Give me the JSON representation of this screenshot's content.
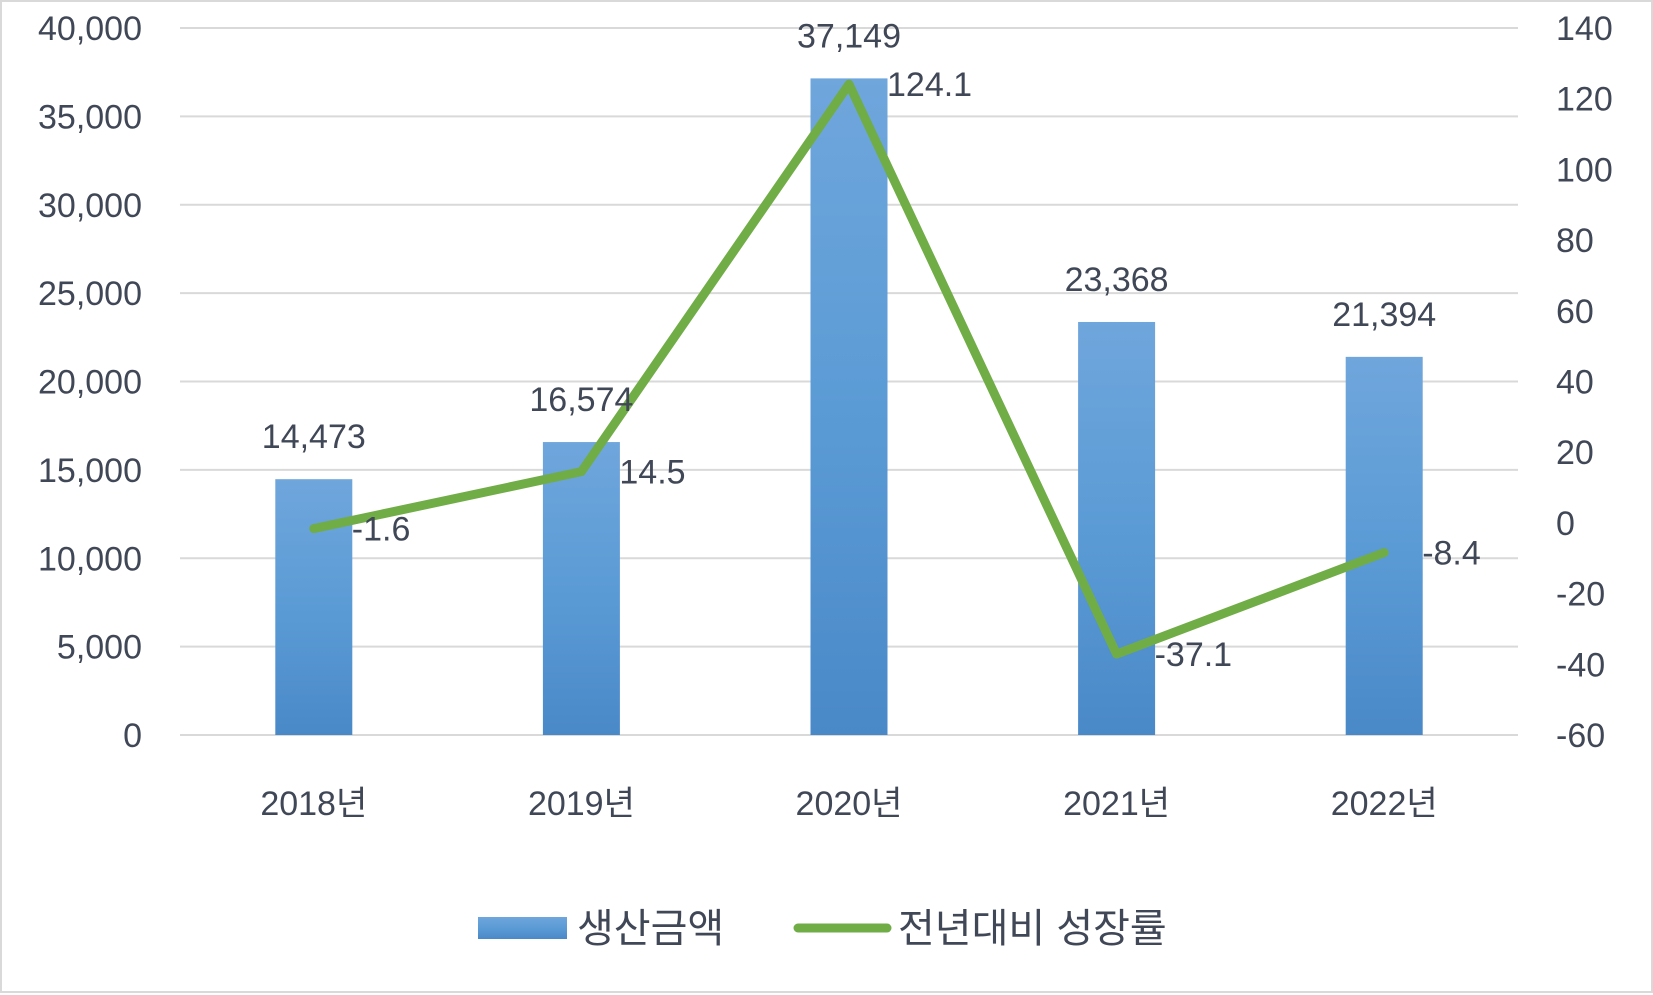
{
  "chart_data": {
    "type": "bar",
    "categories": [
      "2018년",
      "2019년",
      "2020년",
      "2021년",
      "2022년"
    ],
    "series": [
      {
        "name": "생산금액",
        "type": "bar",
        "axis": "left",
        "color": "#5b9bd5",
        "values": [
          14473,
          16574,
          37149,
          23368,
          21394
        ],
        "labels": [
          "14,473",
          "16,574",
          "37,149",
          "23,368",
          "21,394"
        ]
      },
      {
        "name": "전년대비 성장률",
        "type": "line",
        "axis": "right",
        "color": "#70ad47",
        "values": [
          -1.6,
          14.5,
          124.1,
          -37.1,
          -8.4
        ],
        "labels": [
          "-1.6",
          "14.5",
          "124.1",
          "-37.1",
          "-8.4"
        ]
      }
    ],
    "y_left": {
      "min": 0,
      "max": 40000,
      "ticks": [
        "0",
        "5,000",
        "10,000",
        "15,000",
        "20,000",
        "25,000",
        "30,000",
        "35,000",
        "40,000"
      ]
    },
    "y_right": {
      "min": -60,
      "max": 140,
      "ticks": [
        "-60",
        "-40",
        "-20",
        "0",
        "20",
        "40",
        "60",
        "80",
        "100",
        "120",
        "140"
      ]
    },
    "grid": true,
    "legend_position": "bottom"
  }
}
